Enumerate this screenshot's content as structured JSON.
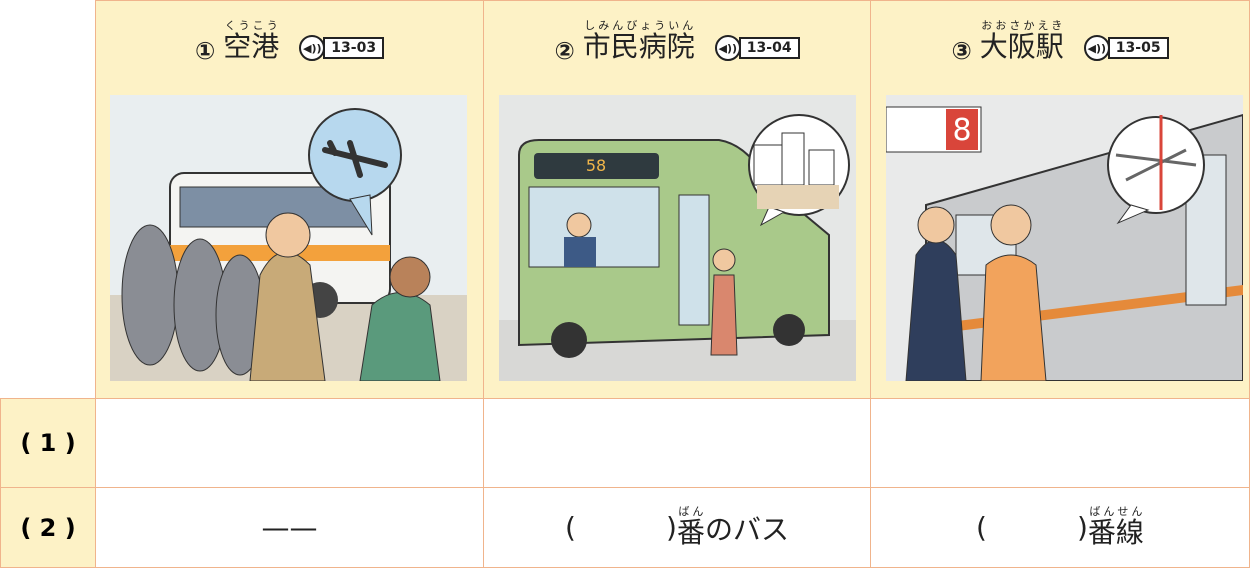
{
  "columns": [
    {
      "number": "①",
      "title": "空港",
      "ruby": "くうこう",
      "audio": "13-03"
    },
    {
      "number": "②",
      "title": "市民病院",
      "ruby": "しみんびょういん",
      "audio": "13-04",
      "sign": "58"
    },
    {
      "number": "③",
      "title": "大阪駅",
      "ruby": "おおさかえき",
      "audio": "13-05",
      "sign": "8"
    }
  ],
  "rows": [
    {
      "label": "( 1 )"
    },
    {
      "label": "( 2 )",
      "cells": [
        {
          "text": "——"
        },
        {
          "open": "(",
          "close": ")",
          "kanji": "番",
          "ruby": "ばん",
          "rest": "のバス"
        },
        {
          "open": "(",
          "close": ")",
          "kanji": "番線",
          "ruby": "ばんせん"
        }
      ]
    }
  ]
}
